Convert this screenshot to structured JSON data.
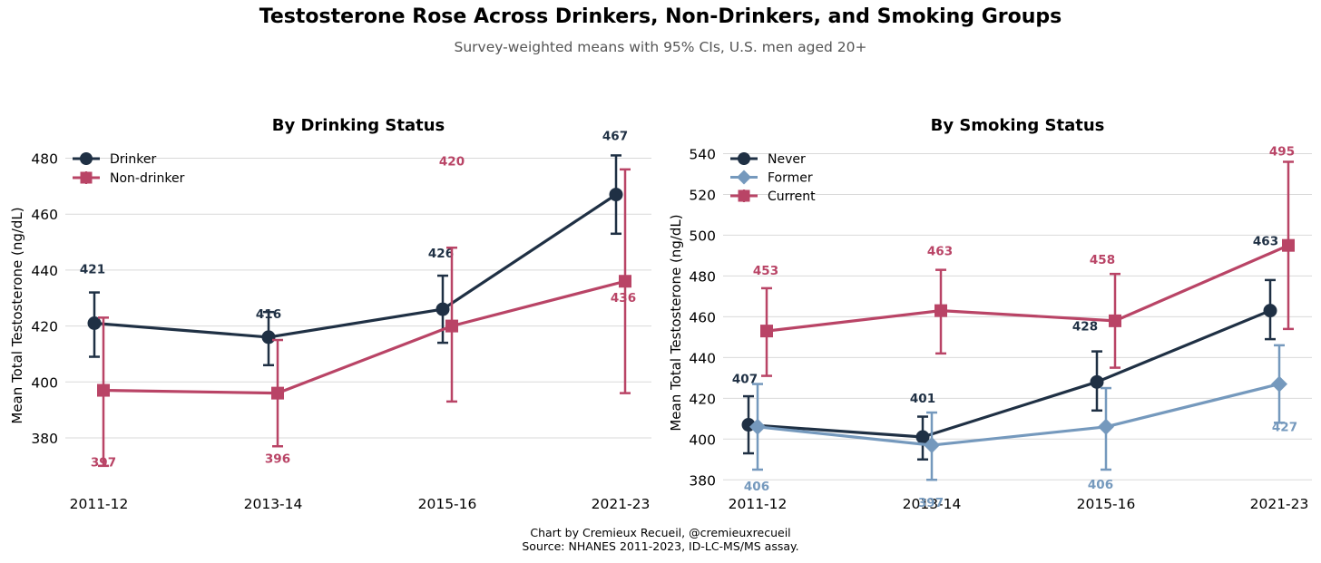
{
  "title": "Testosterone Rose Across Drinkers, Non-Drinkers, and Smoking Groups",
  "subtitle": "Survey-weighted means with 95% CIs, U.S. men aged 20+",
  "footer": {
    "line1": "Chart by Cremieux Recueil, @cremieuxrecueil",
    "line2": "Source: NHANES 2011-2023, ID-LC-MS/MS assay."
  },
  "colors": {
    "navy": "#1f3044",
    "crimson": "#b94466",
    "steel": "#7599bd",
    "grid": "#d9d9d9"
  },
  "chart_data": [
    {
      "type": "line",
      "title": "By Drinking Status",
      "xlabel": "",
      "ylabel": "Mean Total Testosterone (ng/dL)",
      "categories": [
        "2011-12",
        "2013-14",
        "2015-16",
        "2021-23"
      ],
      "ylim": [
        368,
        486
      ],
      "yticks": [
        380,
        400,
        420,
        440,
        460,
        480
      ],
      "grid": "horizontal",
      "legend_position": "top-left",
      "series": [
        {
          "name": "Drinker",
          "color": "#1f3044",
          "marker": "circle",
          "values": [
            421,
            416,
            426,
            467
          ],
          "ci_low": [
            409,
            406,
            414,
            453
          ],
          "ci_high": [
            432,
            425,
            438,
            481
          ],
          "labels": [
            "421",
            "416",
            "426",
            "467"
          ]
        },
        {
          "name": "Non-drinker",
          "color": "#b94466",
          "marker": "square",
          "values": [
            397,
            396,
            420,
            436
          ],
          "ci_low": [
            370,
            377,
            393,
            396
          ],
          "ci_high": [
            423,
            415,
            448,
            476
          ],
          "labels": [
            "397",
            "396",
            "420",
            "436"
          ]
        }
      ]
    },
    {
      "type": "line",
      "title": "By Smoking Status",
      "xlabel": "",
      "ylabel": "Mean Total Testosterone (ng/dL)",
      "categories": [
        "2011-12",
        "2013-14",
        "2015-16",
        "2021-23"
      ],
      "ylim": [
        377,
        546
      ],
      "yticks": [
        380,
        400,
        420,
        440,
        460,
        480,
        500,
        520,
        540
      ],
      "grid": "horizontal",
      "legend_position": "top-left",
      "series": [
        {
          "name": "Never",
          "color": "#1f3044",
          "marker": "circle",
          "values": [
            407,
            401,
            428,
            463
          ],
          "ci_low": [
            393,
            390,
            414,
            449
          ],
          "ci_high": [
            421,
            411,
            443,
            478
          ],
          "labels": [
            "407",
            "401",
            "428",
            "463"
          ]
        },
        {
          "name": "Former",
          "color": "#7599bd",
          "marker": "diamond",
          "values": [
            406,
            397,
            406,
            427
          ],
          "ci_low": [
            385,
            380,
            385,
            408
          ],
          "ci_high": [
            427,
            413,
            425,
            446
          ],
          "labels": [
            "406",
            "397",
            "406",
            "427"
          ]
        },
        {
          "name": "Current",
          "color": "#b94466",
          "marker": "square",
          "values": [
            453,
            463,
            458,
            495
          ],
          "ci_low": [
            431,
            442,
            435,
            454
          ],
          "ci_high": [
            474,
            483,
            481,
            536
          ],
          "labels": [
            "453",
            "463",
            "458",
            "495"
          ]
        }
      ]
    }
  ]
}
